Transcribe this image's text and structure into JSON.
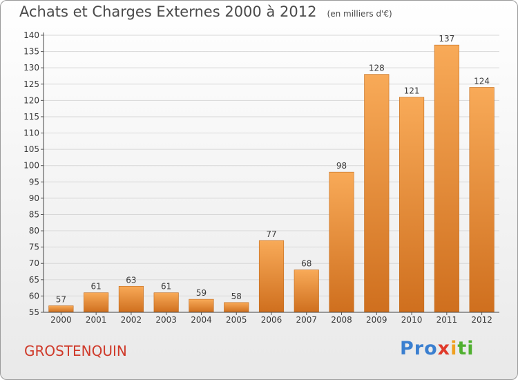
{
  "header": {
    "title": "Achats et Charges Externes 2000 à 2012",
    "unit_note": "(en milliers d'€)"
  },
  "footer": {
    "commune": "GROSTENQUIN",
    "logo_name": "Proxiti",
    "logo_parts": [
      "Pro",
      "x",
      "i",
      "ti"
    ]
  },
  "colors": {
    "bar_top": "#f8aa58",
    "bar_bottom": "#cf6f1e",
    "grid": "#d8d8d8",
    "axis_text": "#3a3a3a"
  },
  "chart_data": {
    "type": "bar",
    "title": "Achats et Charges Externes 2000 à 2012",
    "subtitle": "(en milliers d'€)",
    "xlabel": "",
    "ylabel": "",
    "categories": [
      "2000",
      "2001",
      "2002",
      "2003",
      "2004",
      "2005",
      "2006",
      "2007",
      "2008",
      "2009",
      "2010",
      "2011",
      "2012"
    ],
    "values": [
      57,
      61,
      63,
      61,
      59,
      58,
      77,
      68,
      98,
      128,
      121,
      137,
      124
    ],
    "ylim": [
      55,
      140
    ],
    "yticks": [
      55,
      60,
      65,
      70,
      75,
      80,
      85,
      90,
      95,
      100,
      105,
      110,
      115,
      120,
      125,
      130,
      135,
      140
    ],
    "grid": true,
    "data_labels": true
  }
}
